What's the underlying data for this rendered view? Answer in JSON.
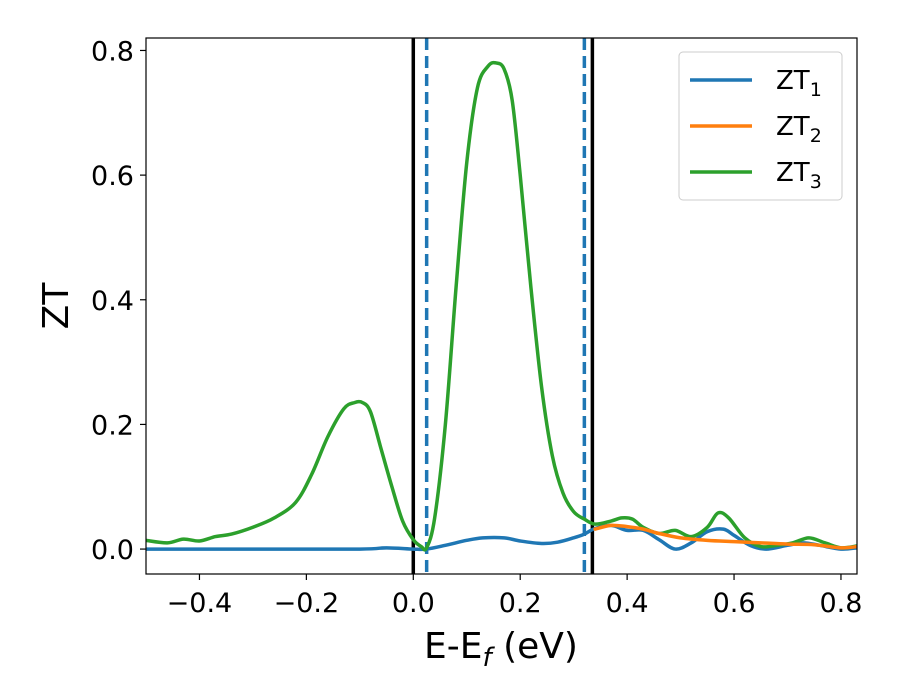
{
  "chart_data": {
    "type": "line",
    "xlabel": {
      "main": "E-E",
      "sub": "f",
      "unit": " (eV)"
    },
    "ylabel": "ZT",
    "xlim": [
      -0.5,
      0.83
    ],
    "ylim": [
      -0.04,
      0.82
    ],
    "xticks": [
      -0.4,
      -0.2,
      0.0,
      0.2,
      0.4,
      0.6,
      0.8
    ],
    "xtick_labels": [
      "−0.4",
      "−0.2",
      "0.0",
      "0.2",
      "0.4",
      "0.6",
      "0.8"
    ],
    "yticks": [
      0.0,
      0.2,
      0.4,
      0.6,
      0.8
    ],
    "ytick_labels": [
      "0.0",
      "0.2",
      "0.4",
      "0.6",
      "0.8"
    ],
    "grid": false,
    "legend_position": "top-right",
    "vlines": [
      {
        "x": 0.0,
        "color": "#000000",
        "style": "solid"
      },
      {
        "x": 0.335,
        "color": "#000000",
        "style": "solid"
      },
      {
        "x": 0.025,
        "color": "#1f77b4",
        "style": "dashed"
      },
      {
        "x": 0.32,
        "color": "#1f77b4",
        "style": "dashed"
      }
    ],
    "series": [
      {
        "name": "ZT",
        "sub": "1",
        "color": "#1f77b4",
        "x": [
          -0.5,
          -0.3,
          -0.1,
          -0.05,
          0.0,
          0.025,
          0.06,
          0.1,
          0.13,
          0.17,
          0.2,
          0.24,
          0.27,
          0.3,
          0.32,
          0.34,
          0.37,
          0.4,
          0.43,
          0.46,
          0.49,
          0.52,
          0.55,
          0.58,
          0.6,
          0.63,
          0.66,
          0.7,
          0.73,
          0.76,
          0.8,
          0.83
        ],
        "y": [
          0.0,
          0.0,
          0.0,
          0.002,
          0.0,
          0.0,
          0.006,
          0.014,
          0.018,
          0.018,
          0.013,
          0.009,
          0.011,
          0.018,
          0.024,
          0.033,
          0.038,
          0.03,
          0.03,
          0.015,
          0.0,
          0.01,
          0.028,
          0.032,
          0.022,
          0.006,
          0.0,
          0.006,
          0.01,
          0.006,
          0.0,
          0.002
        ]
      },
      {
        "name": "ZT",
        "sub": "2",
        "color": "#ff7f0e",
        "x": [
          0.34,
          0.37,
          0.4,
          0.43,
          0.46,
          0.5,
          0.55,
          0.6,
          0.65,
          0.7,
          0.75,
          0.8,
          0.83
        ],
        "y": [
          0.032,
          0.038,
          0.036,
          0.032,
          0.025,
          0.018,
          0.014,
          0.012,
          0.01,
          0.008,
          0.007,
          0.002,
          0.004
        ]
      },
      {
        "name": "ZT",
        "sub": "3",
        "color": "#2ca02c",
        "x": [
          -0.5,
          -0.46,
          -0.43,
          -0.4,
          -0.37,
          -0.34,
          -0.3,
          -0.26,
          -0.22,
          -0.19,
          -0.16,
          -0.13,
          -0.11,
          -0.095,
          -0.08,
          -0.06,
          -0.04,
          -0.02,
          0.0,
          0.015,
          0.025,
          0.04,
          0.06,
          0.08,
          0.1,
          0.12,
          0.14,
          0.155,
          0.17,
          0.185,
          0.2,
          0.22,
          0.24,
          0.26,
          0.28,
          0.3,
          0.32,
          0.34,
          0.37,
          0.39,
          0.41,
          0.43,
          0.46,
          0.49,
          0.52,
          0.55,
          0.57,
          0.59,
          0.62,
          0.65,
          0.68,
          0.71,
          0.74,
          0.77,
          0.8,
          0.83
        ],
        "y": [
          0.014,
          0.01,
          0.016,
          0.013,
          0.02,
          0.024,
          0.035,
          0.05,
          0.075,
          0.12,
          0.18,
          0.225,
          0.235,
          0.235,
          0.22,
          0.16,
          0.1,
          0.045,
          0.015,
          0.004,
          0.002,
          0.05,
          0.2,
          0.42,
          0.62,
          0.74,
          0.775,
          0.78,
          0.77,
          0.72,
          0.6,
          0.42,
          0.26,
          0.15,
          0.09,
          0.06,
          0.048,
          0.04,
          0.045,
          0.05,
          0.048,
          0.035,
          0.025,
          0.03,
          0.02,
          0.035,
          0.058,
          0.05,
          0.018,
          0.004,
          0.006,
          0.01,
          0.018,
          0.01,
          0.002,
          0.005
        ]
      }
    ]
  }
}
